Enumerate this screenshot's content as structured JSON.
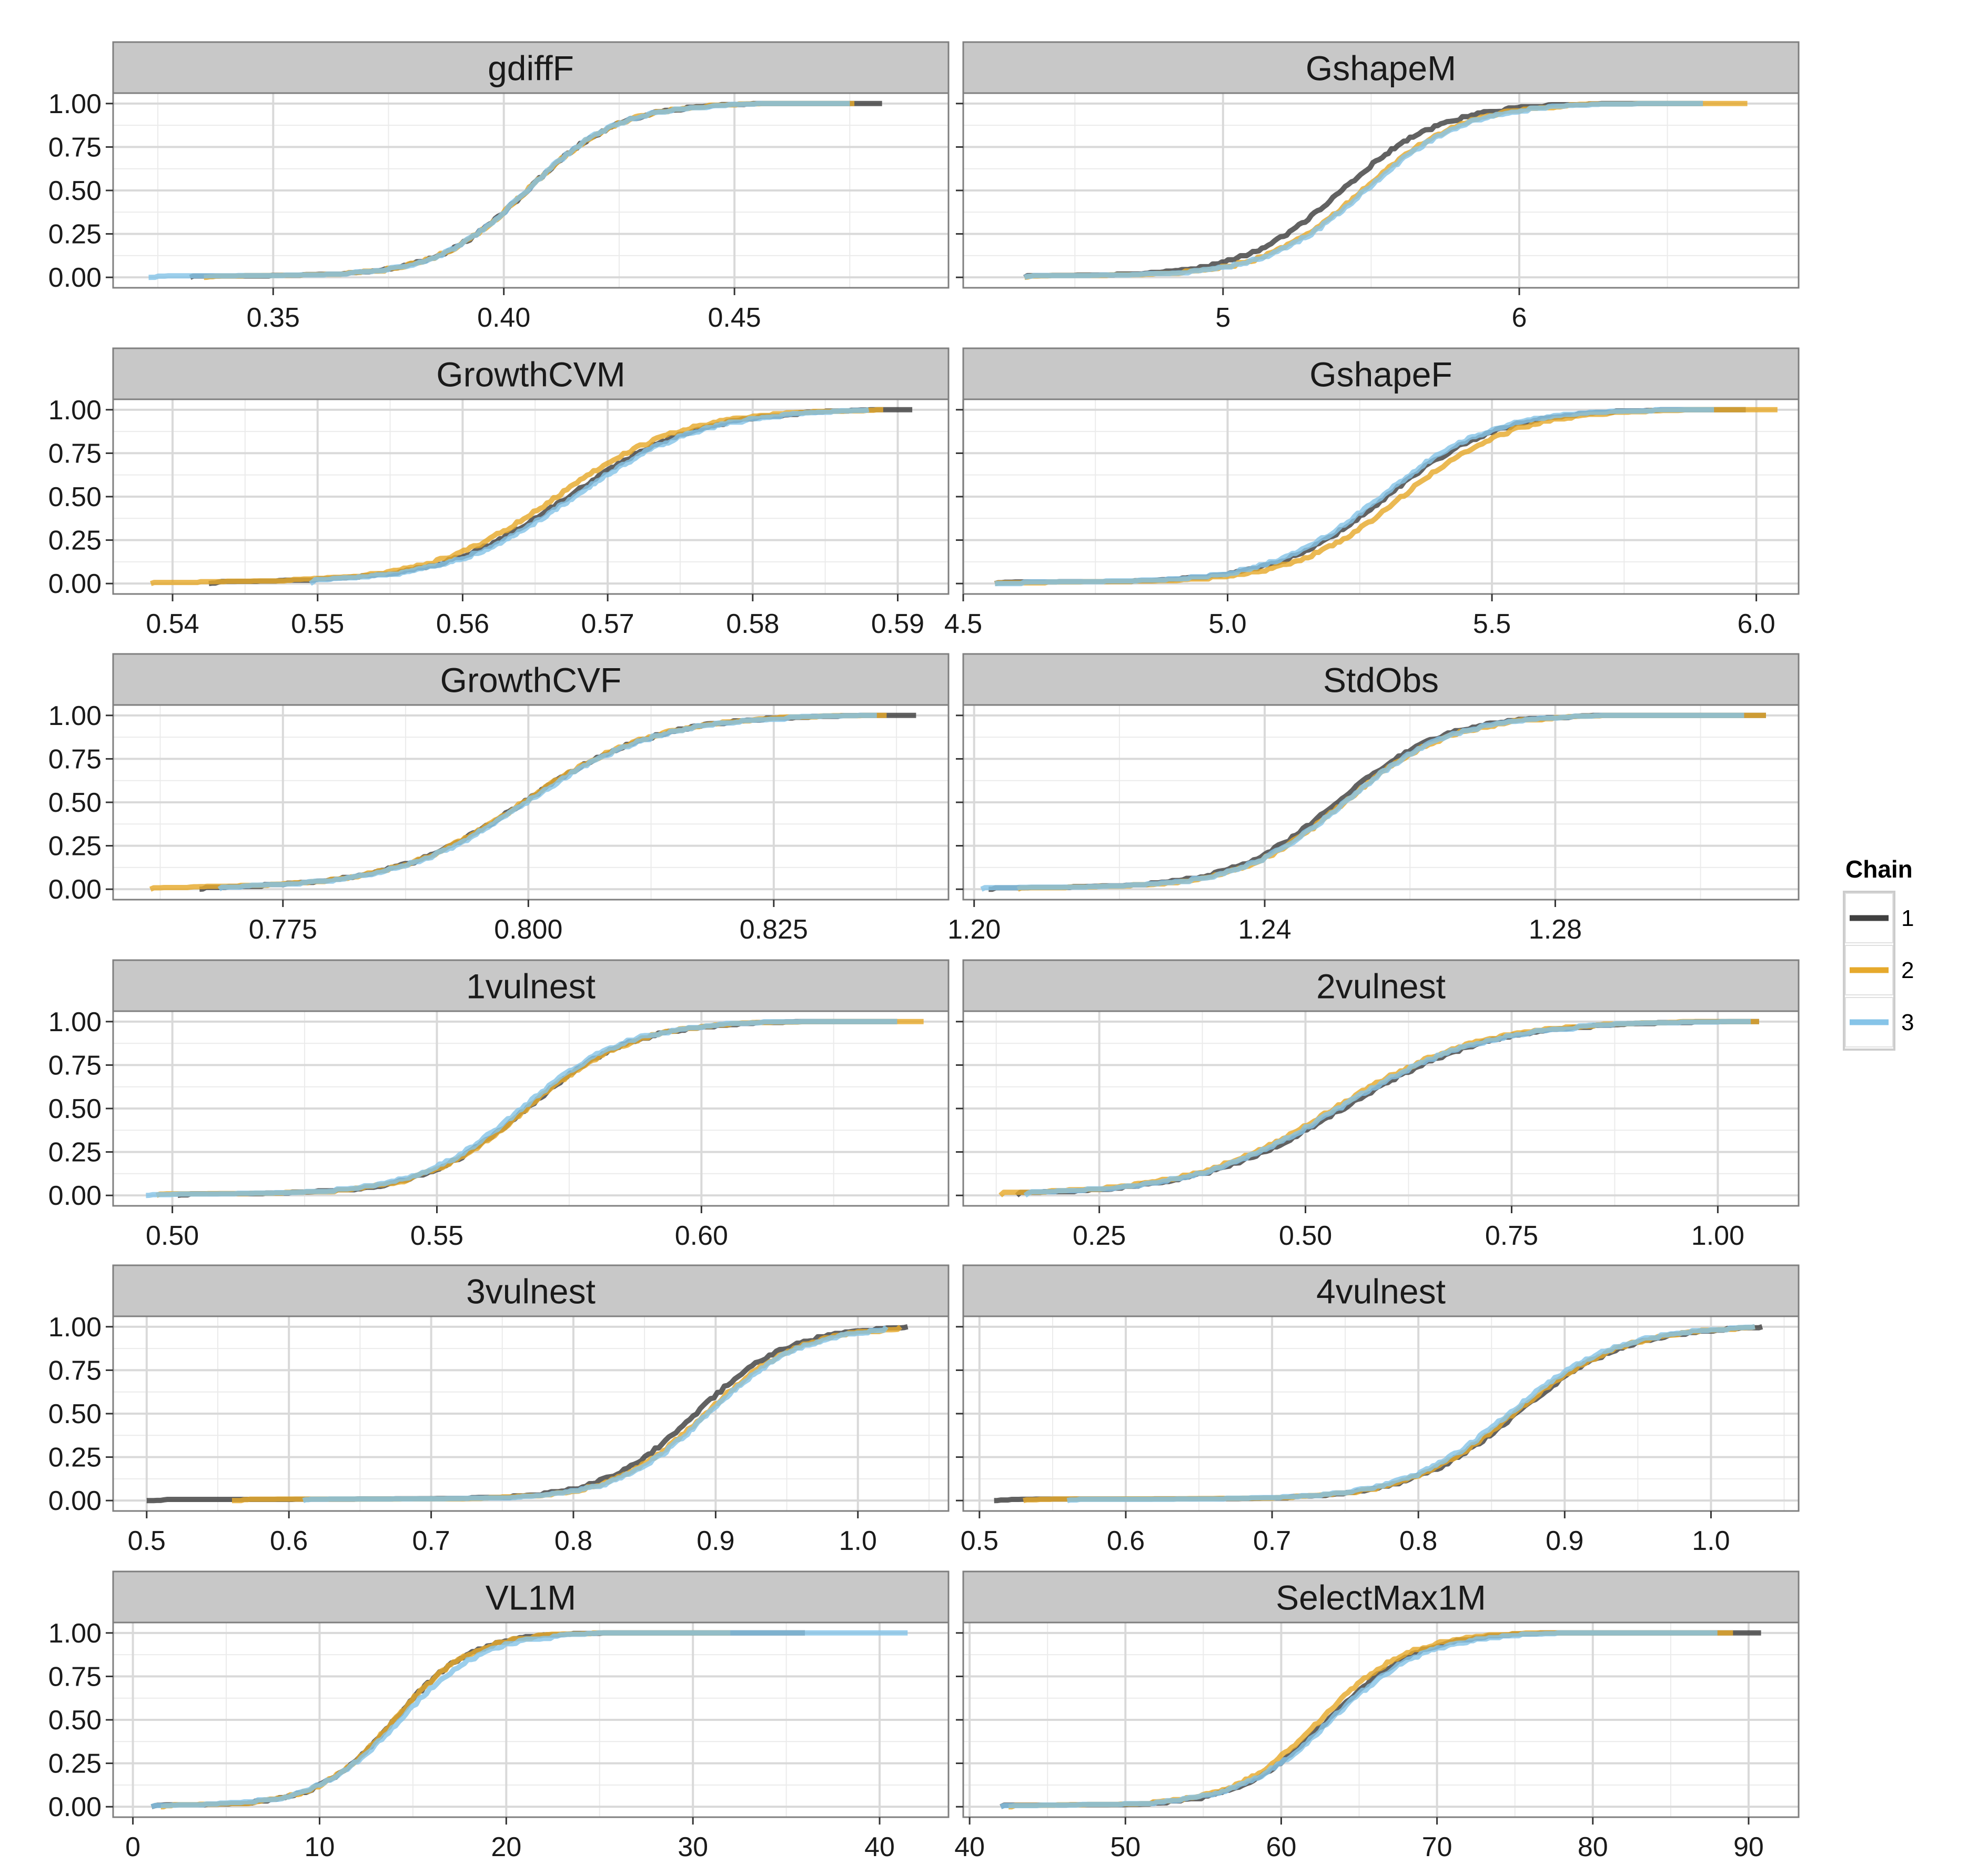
{
  "legend": {
    "title": "Chain",
    "items": [
      {
        "label": "1",
        "color": "#404040"
      },
      {
        "label": "2",
        "color": "#e6a92c"
      },
      {
        "label": "3",
        "color": "#86c4e8"
      }
    ]
  },
  "chart_data": [
    {
      "type": "line",
      "title": "gdiffF",
      "xticks": [
        0.35,
        0.4,
        0.45
      ],
      "xtick_labels": [
        "0.35",
        "0.40",
        "0.45"
      ],
      "xlim": [
        0.3153,
        0.4964
      ],
      "ylim": [
        -0.06,
        1.06
      ],
      "yticks": [
        0,
        0.25,
        0.5,
        0.75,
        1
      ],
      "ytick_labels": [
        "0.00",
        "0.25",
        "0.50",
        "0.75",
        "1.00"
      ],
      "series": [
        {
          "name": "1",
          "min": 0.332,
          "max": 0.482,
          "median": 0.405,
          "spread": 0.017
        },
        {
          "name": "2",
          "min": 0.335,
          "max": 0.476,
          "median": 0.405,
          "spread": 0.017
        },
        {
          "name": "3",
          "min": 0.323,
          "max": 0.475,
          "median": 0.405,
          "spread": 0.017
        }
      ]
    },
    {
      "type": "line",
      "title": "GshapeM",
      "xticks": [
        5,
        6
      ],
      "xtick_labels": [
        "5",
        "6"
      ],
      "xlim": [
        4.123,
        6.943
      ],
      "ylim": [
        -0.06,
        1.06
      ],
      "yticks": [
        0,
        0.25,
        0.5,
        0.75,
        1
      ],
      "ytick_labels": [
        "0.00",
        "0.25",
        "0.50",
        "0.75",
        "1.00"
      ],
      "series": [
        {
          "name": "1",
          "min": 4.33,
          "max": 6.62,
          "median": 5.4,
          "spread": 0.29
        },
        {
          "name": "2",
          "min": 4.33,
          "max": 6.77,
          "median": 5.47,
          "spread": 0.29
        },
        {
          "name": "3",
          "min": 4.33,
          "max": 6.62,
          "median": 5.48,
          "spread": 0.29
        }
      ]
    },
    {
      "type": "line",
      "title": "GrowthCVM",
      "xticks": [
        0.54,
        0.55,
        0.56,
        0.57,
        0.58,
        0.59
      ],
      "xtick_labels": [
        "0.54",
        "0.55",
        "0.56",
        "0.57",
        "0.58",
        "0.59"
      ],
      "xlim": [
        0.5359,
        0.5935
      ],
      "ylim": [
        -0.06,
        1.06
      ],
      "yticks": [
        0,
        0.25,
        0.5,
        0.75,
        1
      ],
      "ytick_labels": [
        "0.00",
        "0.25",
        "0.50",
        "0.75",
        "1.00"
      ],
      "series": [
        {
          "name": "1",
          "min": 0.5425,
          "max": 0.591,
          "median": 0.5673,
          "spread": 0.0075
        },
        {
          "name": "2",
          "min": 0.5385,
          "max": 0.589,
          "median": 0.5665,
          "spread": 0.0075
        },
        {
          "name": "3",
          "min": 0.5495,
          "max": 0.588,
          "median": 0.5677,
          "spread": 0.0075
        }
      ]
    },
    {
      "type": "line",
      "title": "GshapeF",
      "xticks": [
        4.5,
        5.0,
        5.5,
        6.0
      ],
      "xtick_labels": [
        "4.5",
        "5.0",
        "5.5",
        "6.0"
      ],
      "xlim": [
        4.5,
        6.08
      ],
      "ylim": [
        -0.06,
        1.06
      ],
      "yticks": [
        0,
        0.25,
        0.5,
        0.75,
        1
      ],
      "ytick_labels": [
        "0.00",
        "0.25",
        "0.50",
        "0.75",
        "1.00"
      ],
      "series": [
        {
          "name": "1",
          "min": 4.56,
          "max": 5.98,
          "median": 5.3,
          "spread": 0.18
        },
        {
          "name": "2",
          "min": 4.56,
          "max": 6.04,
          "median": 5.33,
          "spread": 0.18
        },
        {
          "name": "3",
          "min": 4.56,
          "max": 5.92,
          "median": 5.29,
          "spread": 0.18
        }
      ]
    },
    {
      "type": "line",
      "title": "GrowthCVF",
      "xticks": [
        0.775,
        0.8,
        0.825
      ],
      "xtick_labels": [
        "0.775",
        "0.800",
        "0.825"
      ],
      "xlim": [
        0.7577,
        0.8428
      ],
      "ylim": [
        -0.06,
        1.06
      ],
      "yticks": [
        0,
        0.25,
        0.5,
        0.75,
        1
      ],
      "ytick_labels": [
        "0.00",
        "0.25",
        "0.50",
        "0.75",
        "1.00"
      ],
      "series": [
        {
          "name": "1",
          "min": 0.7665,
          "max": 0.8395,
          "median": 0.7995,
          "spread": 0.0115
        },
        {
          "name": "2",
          "min": 0.7615,
          "max": 0.8365,
          "median": 0.7995,
          "spread": 0.0115
        },
        {
          "name": "3",
          "min": 0.7685,
          "max": 0.8355,
          "median": 0.7998,
          "spread": 0.0115
        }
      ]
    },
    {
      "type": "line",
      "title": "StdObs",
      "xticks": [
        1.2,
        1.24,
        1.28
      ],
      "xtick_labels": [
        "1.20",
        "1.24",
        "1.28"
      ],
      "xlim": [
        1.1985,
        1.3135
      ],
      "ylim": [
        -0.06,
        1.06
      ],
      "yticks": [
        0,
        0.25,
        0.5,
        0.75,
        1
      ],
      "ytick_labels": [
        "0.00",
        "0.25",
        "0.50",
        "0.75",
        "1.00"
      ],
      "series": [
        {
          "name": "1",
          "min": 1.202,
          "max": 1.309,
          "median": 1.25,
          "spread": 0.0125
        },
        {
          "name": "2",
          "min": 1.206,
          "max": 1.309,
          "median": 1.251,
          "spread": 0.0125
        },
        {
          "name": "3",
          "min": 1.201,
          "max": 1.306,
          "median": 1.251,
          "spread": 0.0125
        }
      ]
    },
    {
      "type": "line",
      "title": "1vulnest",
      "xticks": [
        0.5,
        0.55,
        0.6
      ],
      "xtick_labels": [
        "0.50",
        "0.55",
        "0.60"
      ],
      "xlim": [
        0.4888,
        0.6467
      ],
      "ylim": [
        -0.06,
        1.06
      ],
      "yticks": [
        0,
        0.25,
        0.5,
        0.75,
        1
      ],
      "ytick_labels": [
        "0.00",
        "0.25",
        "0.50",
        "0.75",
        "1.00"
      ],
      "series": [
        {
          "name": "1",
          "min": 0.501,
          "max": 0.637,
          "median": 0.567,
          "spread": 0.017
        },
        {
          "name": "2",
          "min": 0.497,
          "max": 0.642,
          "median": 0.567,
          "spread": 0.017
        },
        {
          "name": "3",
          "min": 0.495,
          "max": 0.637,
          "median": 0.566,
          "spread": 0.017
        }
      ]
    },
    {
      "type": "line",
      "title": "2vulnest",
      "xticks": [
        0.25,
        0.5,
        0.75,
        1.0
      ],
      "xtick_labels": [
        "0.25",
        "0.50",
        "0.75",
        "1.00"
      ],
      "xlim": [
        0.085,
        1.098
      ],
      "ylim": [
        -0.06,
        1.06
      ],
      "yticks": [
        0,
        0.25,
        0.5,
        0.75,
        1
      ],
      "ytick_labels": [
        "0.00",
        "0.25",
        "0.50",
        "0.75",
        "1.00"
      ],
      "series": [
        {
          "name": "1",
          "min": 0.15,
          "max": 1.05,
          "median": 0.545,
          "spread": 0.15
        },
        {
          "name": "2",
          "min": 0.13,
          "max": 1.05,
          "median": 0.535,
          "spread": 0.15
        },
        {
          "name": "3",
          "min": 0.16,
          "max": 1.04,
          "median": 0.54,
          "spread": 0.15
        }
      ]
    },
    {
      "type": "line",
      "title": "3vulnest",
      "xticks": [
        0.5,
        0.6,
        0.7,
        0.8,
        0.9,
        1.0
      ],
      "xtick_labels": [
        "0.5",
        "0.6",
        "0.7",
        "0.8",
        "0.9",
        "1.0"
      ],
      "xlim": [
        0.4764,
        1.0637
      ],
      "ylim": [
        -0.06,
        1.06
      ],
      "yticks": [
        0,
        0.25,
        0.5,
        0.75,
        1
      ],
      "ytick_labels": [
        "0.00",
        "0.25",
        "0.50",
        "0.75",
        "1.00"
      ],
      "series": [
        {
          "name": "1",
          "min": 0.5,
          "max": 1.035,
          "median": 0.886,
          "spread": 0.056
        },
        {
          "name": "2",
          "min": 0.56,
          "max": 1.03,
          "median": 0.893,
          "spread": 0.056
        },
        {
          "name": "3",
          "min": 0.61,
          "max": 1.02,
          "median": 0.895,
          "spread": 0.056
        }
      ]
    },
    {
      "type": "line",
      "title": "4vulnest",
      "xticks": [
        0.5,
        0.6,
        0.7,
        0.8,
        0.9,
        1.0
      ],
      "xtick_labels": [
        "0.5",
        "0.6",
        "0.7",
        "0.8",
        "0.9",
        "1.0"
      ],
      "xlim": [
        0.4889,
        1.0599
      ],
      "ylim": [
        -0.06,
        1.06
      ],
      "yticks": [
        0,
        0.25,
        0.5,
        0.75,
        1
      ],
      "ytick_labels": [
        "0.00",
        "0.25",
        "0.50",
        "0.75",
        "1.00"
      ],
      "series": [
        {
          "name": "1",
          "min": 0.51,
          "max": 1.035,
          "median": 0.867,
          "spread": 0.063
        },
        {
          "name": "2",
          "min": 0.53,
          "max": 1.03,
          "median": 0.865,
          "spread": 0.063
        },
        {
          "name": "3",
          "min": 0.56,
          "max": 1.03,
          "median": 0.862,
          "spread": 0.063
        }
      ]
    },
    {
      "type": "line",
      "title": "VL1M",
      "xticks": [
        0,
        10,
        20,
        30,
        40
      ],
      "xtick_labels": [
        "0",
        "10",
        "20",
        "30",
        "40"
      ],
      "xlim": [
        -1.06,
        43.69
      ],
      "ylim": [
        -0.06,
        1.06
      ],
      "yticks": [
        0,
        0.25,
        0.5,
        0.75,
        1
      ],
      "ytick_labels": [
        "0.00",
        "0.25",
        "0.50",
        "0.75",
        "1.00"
      ],
      "series": [
        {
          "name": "1",
          "min": 1.0,
          "max": 36.0,
          "median": 14.0,
          "spread": 3.5
        },
        {
          "name": "2",
          "min": 1.5,
          "max": 32.0,
          "median": 14.0,
          "spread": 3.5
        },
        {
          "name": "3",
          "min": 1.0,
          "max": 41.5,
          "median": 14.3,
          "spread": 3.8
        }
      ]
    },
    {
      "type": "line",
      "title": "SelectMax1M",
      "xticks": [
        40,
        50,
        60,
        70,
        80,
        90
      ],
      "xtick_labels": [
        "40",
        "50",
        "60",
        "70",
        "80",
        "90"
      ],
      "xlim": [
        39.59,
        93.21
      ],
      "ylim": [
        -0.06,
        1.06
      ],
      "yticks": [
        0,
        0.25,
        0.5,
        0.75,
        1
      ],
      "ytick_labels": [
        "0.00",
        "0.25",
        "0.50",
        "0.75",
        "1.00"
      ],
      "series": [
        {
          "name": "1",
          "min": 42.0,
          "max": 90.8,
          "median": 63.0,
          "spread": 4.8
        },
        {
          "name": "2",
          "min": 42.5,
          "max": 89.0,
          "median": 62.5,
          "spread": 4.8
        },
        {
          "name": "3",
          "min": 42.0,
          "max": 88.0,
          "median": 63.2,
          "spread": 5.1
        }
      ]
    }
  ]
}
